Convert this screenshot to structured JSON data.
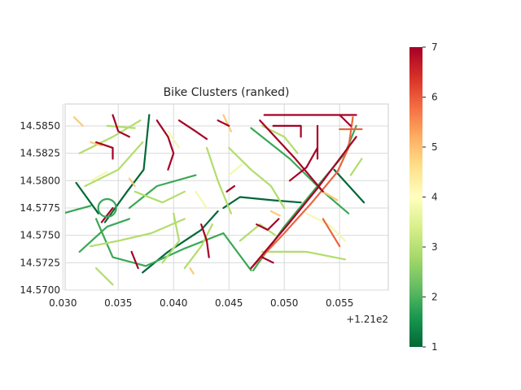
{
  "chart_data": {
    "type": "line",
    "title": "Bike Clusters (ranked)",
    "xlabel": "",
    "ylabel": "",
    "x_offset_text": "+1.21e2",
    "xlim": [
      0.0302,
      0.0594
    ],
    "ylim": [
      14.57,
      14.587
    ],
    "x_ticks": [
      "0.030",
      "0.035",
      "0.040",
      "0.045",
      "0.050",
      "0.055"
    ],
    "x_tick_values": [
      0.03,
      0.035,
      0.04,
      0.045,
      0.05,
      0.055
    ],
    "y_ticks": [
      "14.5700",
      "14.5725",
      "14.5750",
      "14.5775",
      "14.5800",
      "14.5825",
      "14.5850"
    ],
    "y_tick_values": [
      14.57,
      14.5725,
      14.575,
      14.5775,
      14.58,
      14.5825,
      14.585
    ],
    "grid": true,
    "colorbar": {
      "colormap": "RdYlGn_r",
      "range": [
        1,
        7
      ],
      "ticks": [
        "1",
        "2",
        "3",
        "4",
        "5",
        "6",
        "7"
      ],
      "tick_values": [
        1,
        2,
        3,
        4,
        5,
        6,
        7
      ]
    },
    "series": [
      {
        "rank": 1,
        "paths": [
          [
            [
              0.0372,
              14.5716
            ],
            [
              0.0395,
              14.5735
            ],
            [
              0.0425,
              14.5755
            ],
            [
              0.044,
              14.5772
            ]
          ],
          [
            [
              0.0338,
              14.5762
            ],
            [
              0.0358,
              14.579
            ],
            [
              0.0373,
              14.581
            ],
            [
              0.0378,
              14.586
            ]
          ],
          [
            [
              0.0445,
              14.5775
            ],
            [
              0.046,
              14.5785
            ],
            [
              0.049,
              14.5782
            ],
            [
              0.0515,
              14.578
            ]
          ],
          [
            [
              0.0312,
              14.5798
            ],
            [
              0.0332,
              14.577
            ]
          ],
          [
            [
              0.0545,
              14.581
            ],
            [
              0.0572,
              14.578
            ]
          ]
        ]
      },
      {
        "rank": 2,
        "paths": [
          [
            [
              0.0315,
              14.5735
            ],
            [
              0.034,
              14.5758
            ],
            [
              0.036,
              14.5765
            ]
          ],
          [
            [
              0.033,
              14.5765
            ],
            [
              0.0345,
              14.573
            ],
            [
              0.0375,
              14.5722
            ],
            [
              0.041,
              14.5738
            ],
            [
              0.0445,
              14.5752
            ],
            [
              0.047,
              14.5718
            ]
          ],
          [
            [
              0.0472,
              14.5718
            ],
            [
              0.05,
              14.5758
            ],
            [
              0.053,
              14.5795
            ],
            [
              0.0555,
              14.5825
            ],
            [
              0.0565,
              14.585
            ]
          ],
          [
            [
              0.047,
              14.5848
            ],
            [
              0.0505,
              14.582
            ],
            [
              0.0535,
              14.579
            ],
            [
              0.0558,
              14.577
            ]
          ],
          [
            [
              0.036,
              14.5775
            ],
            [
              0.0385,
              14.5795
            ],
            [
              0.042,
              14.5805
            ]
          ],
          [
            [
              0.03,
              14.577
            ],
            [
              0.0325,
              14.5777
            ]
          ]
        ]
      },
      {
        "rank": 3,
        "paths": [
          [
            [
              0.0315,
              14.5825
            ],
            [
              0.0345,
              14.584
            ],
            [
              0.037,
              14.5855
            ]
          ],
          [
            [
              0.032,
              14.5795
            ],
            [
              0.035,
              14.581
            ],
            [
              0.0372,
              14.5835
            ]
          ],
          [
            [
              0.0325,
              14.574
            ],
            [
              0.035,
              14.5745
            ],
            [
              0.038,
              14.5752
            ],
            [
              0.041,
              14.5765
            ]
          ],
          [
            [
              0.041,
              14.572
            ],
            [
              0.0425,
              14.574
            ],
            [
              0.0435,
              14.576
            ]
          ],
          [
            [
              0.045,
              14.583
            ],
            [
              0.047,
              14.581
            ],
            [
              0.0488,
              14.5795
            ],
            [
              0.05,
              14.5775
            ]
          ],
          [
            [
              0.048,
              14.5735
            ],
            [
              0.052,
              14.5735
            ],
            [
              0.0555,
              14.5728
            ]
          ],
          [
            [
              0.043,
              14.583
            ],
            [
              0.044,
              14.58
            ],
            [
              0.0452,
              14.577
            ]
          ],
          [
            [
              0.046,
              14.5745
            ],
            [
              0.0478,
              14.576
            ],
            [
              0.0492,
              14.575
            ]
          ],
          [
            [
              0.034,
              14.585
            ],
            [
              0.0365,
              14.5848
            ]
          ],
          [
            [
              0.048,
              14.585
            ],
            [
              0.05,
              14.584
            ],
            [
              0.0512,
              14.5825
            ]
          ],
          [
            [
              0.039,
              14.5725
            ],
            [
              0.0405,
              14.5745
            ],
            [
              0.04,
              14.577
            ]
          ],
          [
            [
              0.056,
              14.5805
            ],
            [
              0.057,
              14.582
            ]
          ],
          [
            [
              0.033,
              14.572
            ],
            [
              0.0345,
              14.5705
            ]
          ],
          [
            [
              0.0365,
              14.579
            ],
            [
              0.039,
              14.578
            ],
            [
              0.041,
              14.579
            ]
          ]
        ]
      },
      {
        "rank": 4,
        "paths": [
          [
            [
              0.0325,
              14.58
            ],
            [
              0.034,
              14.5808
            ]
          ],
          [
            [
              0.052,
              14.577
            ],
            [
              0.054,
              14.576
            ],
            [
              0.0555,
              14.5745
            ]
          ],
          [
            [
              0.042,
              14.579
            ],
            [
              0.043,
              14.5775
            ]
          ],
          [
            [
              0.045,
              14.5805
            ],
            [
              0.0462,
              14.5815
            ]
          ],
          [
            [
              0.0395,
              14.5845
            ],
            [
              0.0405,
              14.583
            ]
          ]
        ]
      },
      {
        "rank": 5,
        "paths": [
          [
            [
              0.0325,
              14.5835
            ],
            [
              0.0335,
              14.5832
            ]
          ],
          [
            [
              0.036,
              14.5802
            ],
            [
              0.0365,
              14.5795
            ]
          ],
          [
            [
              0.0445,
              14.586
            ],
            [
              0.0452,
              14.5845
            ]
          ],
          [
            [
              0.0535,
              14.579
            ],
            [
              0.0548,
              14.5782
            ]
          ],
          [
            [
              0.0488,
              14.5772
            ],
            [
              0.0496,
              14.5768
            ]
          ],
          [
            [
              0.0415,
              14.572
            ],
            [
              0.0418,
              14.5715
            ]
          ],
          [
            [
              0.031,
              14.5858
            ],
            [
              0.0318,
              14.585
            ]
          ]
        ]
      },
      {
        "rank": 6,
        "paths": [
          [
            [
              0.047,
              14.572
            ],
            [
              0.05,
              14.5752
            ],
            [
              0.0525,
              14.578
            ],
            [
              0.0548,
              14.5808
            ],
            [
              0.0558,
              14.583
            ],
            [
              0.0562,
              14.5858
            ]
          ],
          [
            [
              0.055,
              14.5847
            ],
            [
              0.057,
              14.5847
            ]
          ],
          [
            [
              0.0535,
              14.5765
            ],
            [
              0.055,
              14.574
            ]
          ]
        ]
      },
      {
        "rank": 7,
        "paths": [
          [
            [
              0.0482,
              14.586
            ],
            [
              0.0565,
              14.586
            ]
          ],
          [
            [
              0.047,
              14.572
            ],
            [
              0.0505,
              14.5762
            ],
            [
              0.053,
              14.5793
            ],
            [
              0.055,
              14.582
            ],
            [
              0.0565,
              14.584
            ]
          ],
          [
            [
              0.0478,
              14.5855
            ],
            [
              0.051,
              14.582
            ],
            [
              0.0535,
              14.579
            ]
          ],
          [
            [
              0.049,
              14.585
            ],
            [
              0.0515,
              14.585
            ],
            [
              0.0515,
              14.584
            ]
          ],
          [
            [
              0.053,
              14.585
            ],
            [
              0.053,
              14.582
            ]
          ],
          [
            [
              0.055,
              14.586
            ],
            [
              0.056,
              14.585
            ]
          ],
          [
            [
              0.0385,
              14.5855
            ],
            [
              0.0395,
              14.584
            ],
            [
              0.04,
              14.5825
            ],
            [
              0.0395,
              14.581
            ]
          ],
          [
            [
              0.0405,
              14.5855
            ],
            [
              0.042,
              14.5845
            ],
            [
              0.043,
              14.5838
            ]
          ],
          [
            [
              0.033,
              14.5835
            ],
            [
              0.0345,
              14.583
            ],
            [
              0.0345,
              14.582
            ]
          ],
          [
            [
              0.0345,
              14.586
            ],
            [
              0.035,
              14.5845
            ],
            [
              0.036,
              14.584
            ]
          ],
          [
            [
              0.044,
              14.5855
            ],
            [
              0.045,
              14.585
            ]
          ],
          [
            [
              0.0448,
              14.579
            ],
            [
              0.0455,
              14.5795
            ]
          ],
          [
            [
              0.0425,
              14.576
            ],
            [
              0.043,
              14.5745
            ],
            [
              0.0432,
              14.573
            ]
          ],
          [
            [
              0.0475,
              14.576
            ],
            [
              0.0485,
              14.5755
            ],
            [
              0.0495,
              14.5765
            ]
          ],
          [
            [
              0.0505,
              14.58
            ],
            [
              0.052,
              14.5812
            ],
            [
              0.053,
              14.583
            ]
          ],
          [
            [
              0.0335,
              14.5762
            ],
            [
              0.0345,
              14.5775
            ]
          ],
          [
            [
              0.0362,
              14.5735
            ],
            [
              0.0368,
              14.572
            ]
          ],
          [
            [
              0.048,
              14.573
            ],
            [
              0.049,
              14.5725
            ]
          ]
        ]
      }
    ]
  }
}
